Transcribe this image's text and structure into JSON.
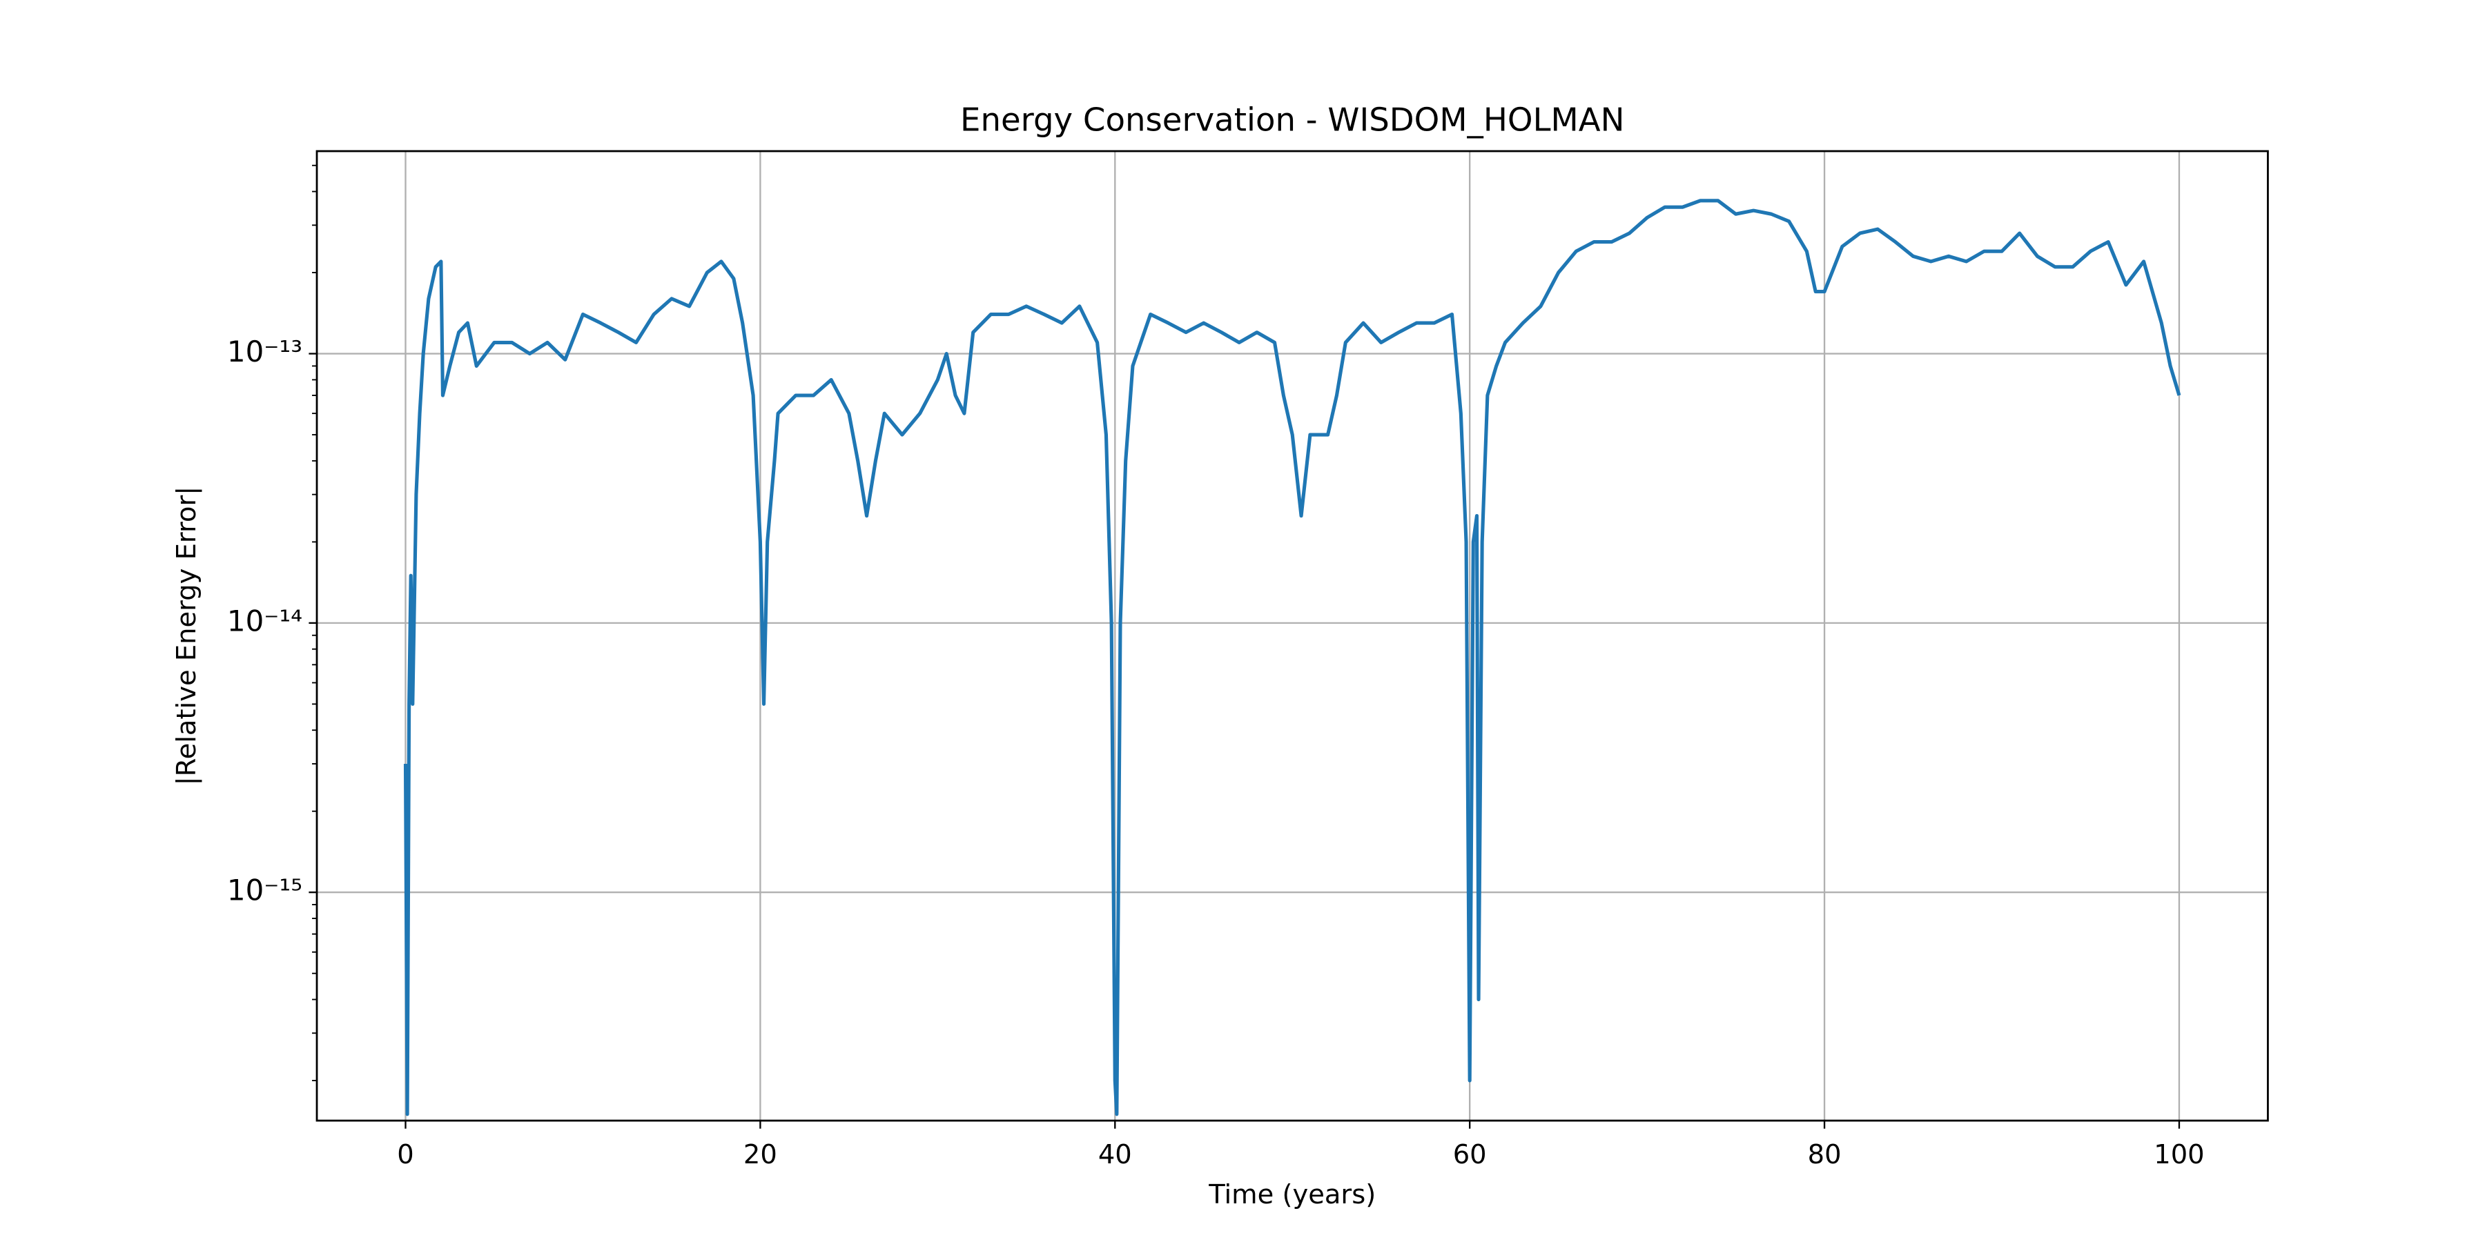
{
  "chart_data": {
    "type": "line",
    "title": "Energy Conservation - WISDOM_HOLMAN",
    "xlabel": "Time (years)",
    "ylabel": "|Relative Energy Error|",
    "yscale": "log",
    "grid": true,
    "xlim": [
      -5,
      105
    ],
    "xticks": [
      0,
      20,
      40,
      60,
      80,
      100
    ],
    "ylim": [
      1.42e-16,
      5.65e-13
    ],
    "yticks": [
      {
        "value": 1e-15,
        "label": "10⁻¹⁵"
      },
      {
        "value": 1e-14,
        "label": "10⁻¹⁴"
      },
      {
        "value": 1e-13,
        "label": "10⁻¹³"
      }
    ],
    "yminorticks": [
      2e-16,
      3e-16,
      4e-16,
      5e-16,
      6e-16,
      7e-16,
      8e-16,
      9e-16,
      2e-15,
      3e-15,
      4e-15,
      5e-15,
      6e-15,
      7e-15,
      8e-15,
      9e-15,
      2e-14,
      3e-14,
      4e-14,
      5e-14,
      6e-14,
      7e-14,
      8e-14,
      9e-14,
      2e-13,
      3e-13,
      4e-13,
      5e-13
    ],
    "x": [
      0,
      0.1,
      0.2,
      0.3,
      0.4,
      0.6,
      0.8,
      1.0,
      1.3,
      1.7,
      2.0,
      2.1,
      2.5,
      3,
      3.5,
      4,
      5,
      6,
      7,
      8,
      9,
      10,
      11,
      12,
      13,
      14,
      15,
      16,
      17,
      17.8,
      18.5,
      19,
      19.6,
      20,
      20.2,
      20.4,
      20.8,
      21,
      22,
      23,
      24,
      25,
      25.5,
      26,
      26.5,
      27,
      28,
      29,
      30,
      30.5,
      31,
      31.5,
      32,
      33,
      34,
      35,
      36,
      37,
      38,
      39,
      39.5,
      39.8,
      40,
      40.1,
      40.3,
      40.6,
      41,
      42,
      43,
      44,
      45,
      46,
      47,
      48,
      49,
      49.5,
      50,
      50.5,
      51,
      52,
      52.5,
      53,
      54,
      55,
      56,
      57,
      58,
      59,
      59.5,
      59.8,
      60,
      60.2,
      60.4,
      60.5,
      60.7,
      61,
      61.5,
      62,
      63,
      64,
      65,
      66,
      67,
      68,
      69,
      70,
      71,
      72,
      73,
      74,
      75,
      76,
      77,
      78,
      79,
      79.5,
      80,
      81,
      82,
      83,
      84,
      85,
      86,
      87,
      88,
      89,
      90,
      91,
      92,
      93,
      94,
      95,
      96,
      97,
      98,
      99,
      99.5,
      100
    ],
    "series": [
      {
        "name": "|Relative Energy Error|",
        "color": "#1f77b4",
        "values": [
          3e-15,
          1.5e-16,
          5e-15,
          1.5e-14,
          5e-15,
          3e-14,
          6e-14,
          1e-13,
          1.6e-13,
          2.1e-13,
          2.2e-13,
          7e-14,
          9e-14,
          1.2e-13,
          1.3e-13,
          9e-14,
          1.1e-13,
          1.1e-13,
          1e-13,
          1.1e-13,
          9.5e-14,
          1.4e-13,
          1.3e-13,
          1.2e-13,
          1.1e-13,
          1.4e-13,
          1.6e-13,
          1.5e-13,
          2e-13,
          2.2e-13,
          1.9e-13,
          1.3e-13,
          7e-14,
          2e-14,
          5e-15,
          2e-14,
          4e-14,
          6e-14,
          7e-14,
          7e-14,
          8e-14,
          6e-14,
          4e-14,
          2.5e-14,
          4e-14,
          6e-14,
          5e-14,
          6e-14,
          8e-14,
          1e-13,
          7e-14,
          6e-14,
          1.2e-13,
          1.4e-13,
          1.4e-13,
          1.5e-13,
          1.4e-13,
          1.3e-13,
          1.5e-13,
          1.1e-13,
          5e-14,
          1e-14,
          2e-16,
          1.5e-16,
          1e-14,
          4e-14,
          9e-14,
          1.4e-13,
          1.3e-13,
          1.2e-13,
          1.3e-13,
          1.2e-13,
          1.1e-13,
          1.2e-13,
          1.1e-13,
          7e-14,
          5e-14,
          2.5e-14,
          5e-14,
          5e-14,
          7e-14,
          1.1e-13,
          1.3e-13,
          1.1e-13,
          1.2e-13,
          1.3e-13,
          1.3e-13,
          1.4e-13,
          6e-14,
          2e-14,
          2e-16,
          2e-14,
          2.5e-14,
          4e-16,
          2e-14,
          7e-14,
          9e-14,
          1.1e-13,
          1.3e-13,
          1.5e-13,
          2e-13,
          2.4e-13,
          2.6e-13,
          2.6e-13,
          2.8e-13,
          3.2e-13,
          3.5e-13,
          3.5e-13,
          3.7e-13,
          3.7e-13,
          3.3e-13,
          3.4e-13,
          3.3e-13,
          3.1e-13,
          2.4e-13,
          1.7e-13,
          1.7e-13,
          2.5e-13,
          2.8e-13,
          2.9e-13,
          2.6e-13,
          2.3e-13,
          2.2e-13,
          2.3e-13,
          2.2e-13,
          2.4e-13,
          2.4e-13,
          2.8e-13,
          2.3e-13,
          2.1e-13,
          2.1e-13,
          2.4e-13,
          2.6e-13,
          1.8e-13,
          2.2e-13,
          1.3e-13,
          9e-14,
          7e-14
        ]
      }
    ]
  }
}
